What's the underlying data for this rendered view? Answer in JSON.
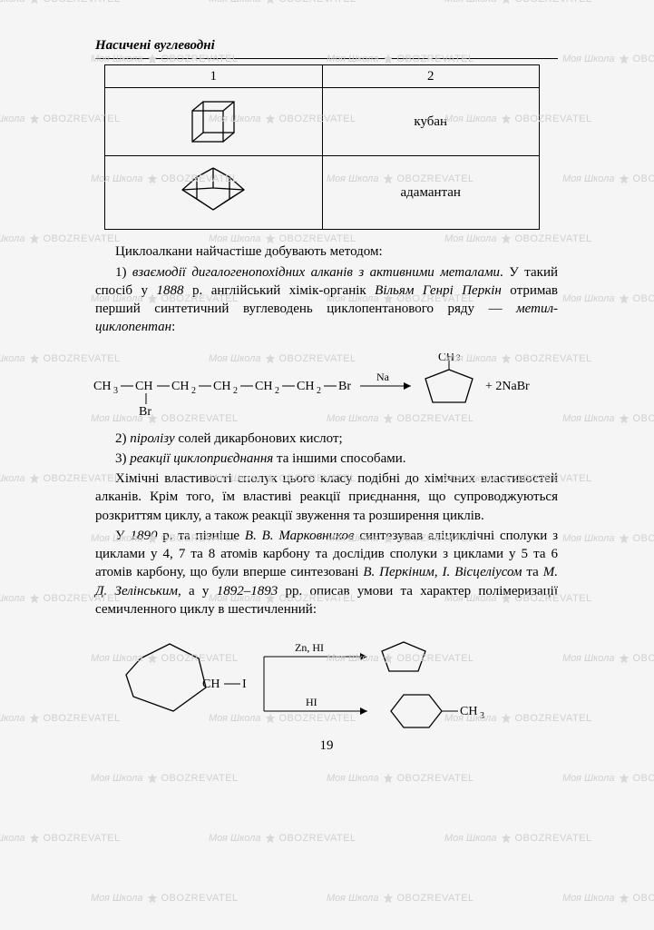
{
  "section_title": "Насичені вуглеводні",
  "table": {
    "headers": [
      "1",
      "2"
    ],
    "rows": [
      {
        "label": "кубан"
      },
      {
        "label": "адамантан"
      }
    ]
  },
  "para_intro": "Циклоалкани найчастіше добувають методом:",
  "item1_a": "1) ",
  "item1_em": "взаємодії дигалогенопохідних алканів з актив­ними металами",
  "item1_b": ". У такий спосіб у ",
  "item1_year": "1888",
  "item1_c": " р. англійський хімік-органік ",
  "item1_name": "Вільям Генрі Перкін",
  "item1_d": " отримав перший син­тетичний вуглеводень циклопентанового ряду — ",
  "item1_prod": "метил­циклопентан",
  "item1_e": ":",
  "item2_a": "2) ",
  "item2_em": "піролізу",
  "item2_b": " солей дикарбонових кислот;",
  "item3_a": "3) ",
  "item3_em": "реакції циклоприєднання",
  "item3_b": " та іншими способами.",
  "para2": "Хімічні властивості сполук цього класу подібні до хімічних властивостей алканів. Крім того, їм властиві реакції приєднання, що супроводжуються розкриттям циклу, а також реакції звуження та розширення циклів.",
  "para3_a": "У ",
  "para3_y1": "1890",
  "para3_b": " р. та пізніше ",
  "para3_n1": "В. В. Марковников",
  "para3_c": " синтезував аліциклічні сполуки з циклами у 4, 7 та 8 атомів кар­бону та дослідив сполуки з циклами у 5 та 6 атомів кар­бону, що були вперше синтезовані ",
  "para3_n2": "В. Перкіним",
  "para3_d": ", ",
  "para3_n3": "І. Віс­целіусом",
  "para3_e": " та ",
  "para3_n4": "М. Д. Зелінським",
  "para3_f": ", а у ",
  "para3_y2": "1892–1893",
  "para3_g": " рр. описав умови та характер полімеризації семичленного циклу в шестичленний:",
  "page_number": "19",
  "colors": {
    "text": "#000000",
    "watermark": "#d0d0d0",
    "watermark_label": "Моя Школа",
    "watermark_brand": "OBOZREVATEL",
    "background": "#f5f5f5"
  },
  "reaction1": {
    "reagent_formula": "CH₃—CH—CH₂—CH₂—CH₂—CH₂—Br",
    "reagent_sub": "Br",
    "arrow_label": "Na",
    "product_sub": "CH₃",
    "byproduct": "2NaBr"
  },
  "reaction2": {
    "arrow1_label": "Zn, HI",
    "arrow2_label": "HI",
    "product2_sub": "CH₃"
  }
}
